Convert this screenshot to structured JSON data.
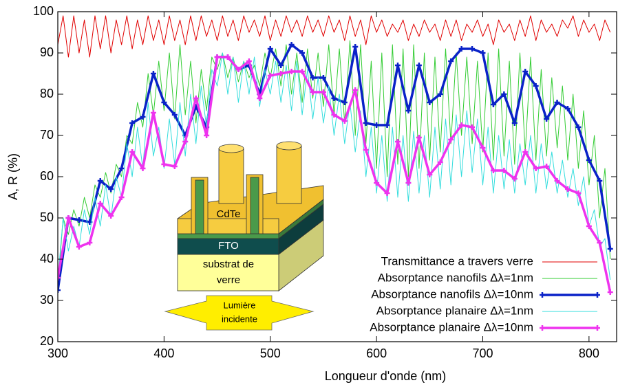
{
  "chart_data": {
    "type": "line",
    "xlabel": "Longueur d'onde (nm)",
    "ylabel": "A, R (%)",
    "xlim": [
      300,
      826
    ],
    "ylim": [
      20,
      100
    ],
    "xticks": [
      300,
      400,
      500,
      600,
      700,
      800
    ],
    "yticks": [
      20,
      30,
      40,
      50,
      60,
      70,
      80,
      90,
      100
    ],
    "grid": false,
    "legend": "lower right",
    "annotations": [
      "CdTe",
      "FTO",
      "substrat de",
      "verre",
      "Lumière",
      "incidente"
    ],
    "x": [
      300,
      305,
      310,
      315,
      320,
      325,
      330,
      335,
      340,
      345,
      350,
      355,
      360,
      365,
      370,
      375,
      380,
      385,
      390,
      395,
      400,
      405,
      410,
      415,
      420,
      425,
      430,
      435,
      440,
      445,
      450,
      455,
      460,
      465,
      470,
      475,
      480,
      485,
      490,
      495,
      500,
      505,
      510,
      515,
      520,
      525,
      530,
      535,
      540,
      545,
      550,
      555,
      560,
      565,
      570,
      575,
      580,
      585,
      590,
      595,
      600,
      605,
      610,
      615,
      620,
      625,
      630,
      635,
      640,
      645,
      650,
      655,
      660,
      665,
      670,
      675,
      680,
      685,
      690,
      695,
      700,
      705,
      710,
      715,
      720,
      725,
      730,
      735,
      740,
      745,
      750,
      755,
      760,
      765,
      770,
      775,
      780,
      785,
      790,
      795,
      800,
      805,
      810,
      815,
      820
    ],
    "series": [
      {
        "name": "Transmittance a travers verre",
        "color": "#e00000",
        "width": 1,
        "markers": false,
        "values": [
          92,
          99,
          89,
          99,
          90,
          98,
          89,
          99,
          91,
          99,
          90,
          98,
          92,
          99,
          91,
          98,
          92,
          99,
          93,
          98,
          92,
          99,
          93,
          98,
          92,
          99,
          93,
          99,
          94,
          98,
          93,
          99,
          94,
          98,
          93,
          99,
          95,
          98,
          94,
          99,
          93,
          98,
          94,
          99,
          95,
          98,
          94,
          99,
          95,
          98,
          94,
          99,
          95,
          98,
          93,
          99,
          94,
          98,
          92,
          99,
          95,
          98,
          94,
          97,
          95,
          98,
          93,
          97,
          94,
          98,
          95,
          97,
          93,
          98,
          94,
          98,
          93,
          97,
          95,
          98,
          94,
          97,
          92,
          98,
          95,
          97,
          93,
          98,
          94,
          99,
          93,
          98,
          95,
          97,
          94,
          98,
          96,
          99,
          94,
          98,
          95,
          97,
          93,
          98,
          95
        ]
      },
      {
        "name": "Absorptance nanofils Δλ=1nm",
        "color": "#33cc33",
        "width": 1,
        "markers": false,
        "values": [
          33,
          50,
          46,
          52,
          48,
          55,
          50,
          58,
          55,
          61,
          56,
          63,
          60,
          70,
          68,
          78,
          72,
          85,
          75,
          88,
          76,
          90,
          74,
          92,
          75,
          88,
          73,
          86,
          76,
          89,
          86,
          90,
          84,
          89,
          83,
          88,
          84,
          87,
          82,
          90,
          84,
          91,
          82,
          92,
          80,
          90,
          78,
          91,
          79,
          90,
          77,
          92,
          75,
          91,
          73,
          93,
          70,
          92,
          68,
          88,
          62,
          90,
          60,
          92,
          63,
          91,
          60,
          92,
          62,
          90,
          64,
          89,
          66,
          91,
          68,
          90,
          70,
          89,
          68,
          88,
          66,
          90,
          64,
          91,
          65,
          88,
          63,
          90,
          66,
          89,
          64,
          86,
          65,
          84,
          67,
          82,
          64,
          80,
          62,
          76,
          58,
          70,
          50,
          62,
          40
        ]
      },
      {
        "name": "Absorptance nanofils Δλ=10nm",
        "color": "#0a22c8",
        "width": 3.5,
        "markers": true,
        "x": [
          300,
          310,
          320,
          330,
          340,
          350,
          360,
          370,
          380,
          390,
          400,
          410,
          420,
          430,
          440,
          450,
          460,
          470,
          480,
          490,
          500,
          510,
          520,
          530,
          540,
          550,
          560,
          570,
          580,
          590,
          600,
          610,
          620,
          630,
          640,
          650,
          660,
          670,
          680,
          690,
          700,
          710,
          720,
          730,
          740,
          750,
          760,
          770,
          780,
          790,
          800,
          810,
          820
        ],
        "values": [
          32.5,
          50,
          49.5,
          49,
          59,
          57,
          62,
          73,
          74.5,
          85,
          78,
          75,
          70,
          77,
          72,
          89,
          89,
          86,
          87,
          80,
          91,
          87,
          92,
          90,
          84,
          84,
          79,
          78,
          91.5,
          73,
          72.5,
          72.5,
          87,
          76,
          87,
          78,
          80,
          88,
          91,
          91,
          90,
          77.5,
          80,
          73,
          85.5,
          82,
          74,
          78,
          76.5,
          72,
          64,
          59,
          42.5
        ]
      },
      {
        "name": "Absorptance planaire Δλ=1nm",
        "color": "#33dddd",
        "width": 1,
        "markers": false,
        "values": [
          35,
          50,
          42,
          48,
          43,
          52,
          46,
          55,
          48,
          58,
          50,
          60,
          55,
          68,
          60,
          72,
          62,
          78,
          65,
          72,
          62,
          74,
          63,
          78,
          65,
          80,
          68,
          82,
          72,
          86,
          82,
          90,
          80,
          89,
          78,
          88,
          80,
          89,
          77,
          86,
          80,
          88,
          78,
          87,
          76,
          88,
          75,
          86,
          74,
          84,
          73,
          82,
          70,
          80,
          68,
          78,
          66,
          76,
          60,
          72,
          56,
          70,
          54,
          72,
          55,
          70,
          54,
          71,
          56,
          70,
          55,
          72,
          57,
          74,
          58,
          75,
          60,
          76,
          61,
          74,
          58,
          72,
          56,
          70,
          57,
          69,
          56,
          68,
          58,
          70,
          56,
          68,
          57,
          66,
          56,
          64,
          55,
          62,
          53,
          60,
          48,
          52,
          43,
          45,
          35
        ]
      },
      {
        "name": "Absorptance planaire Δλ=10nm",
        "color": "#ee33ee",
        "width": 3.5,
        "markers": true,
        "x": [
          300,
          310,
          320,
          330,
          340,
          350,
          360,
          370,
          380,
          390,
          400,
          410,
          420,
          430,
          440,
          450,
          460,
          470,
          480,
          490,
          500,
          510,
          520,
          530,
          540,
          550,
          560,
          570,
          580,
          590,
          600,
          610,
          620,
          630,
          640,
          650,
          660,
          670,
          680,
          690,
          700,
          710,
          720,
          730,
          740,
          750,
          760,
          770,
          780,
          790,
          800,
          810,
          820
        ],
        "values": [
          35.5,
          50,
          43,
          44,
          53.5,
          50.5,
          55,
          66,
          62,
          75.5,
          63,
          62.5,
          68.5,
          79,
          70,
          89,
          89,
          86,
          88,
          79,
          84.5,
          85,
          85.5,
          85.5,
          80.5,
          80.5,
          75,
          73.5,
          81,
          66.5,
          58.5,
          56,
          68.5,
          58.5,
          69.5,
          60.5,
          63.5,
          69,
          72.5,
          72,
          67,
          61.5,
          61.5,
          59.5,
          66,
          62,
          62.5,
          59,
          57,
          56,
          48,
          44,
          32
        ]
      }
    ]
  }
}
